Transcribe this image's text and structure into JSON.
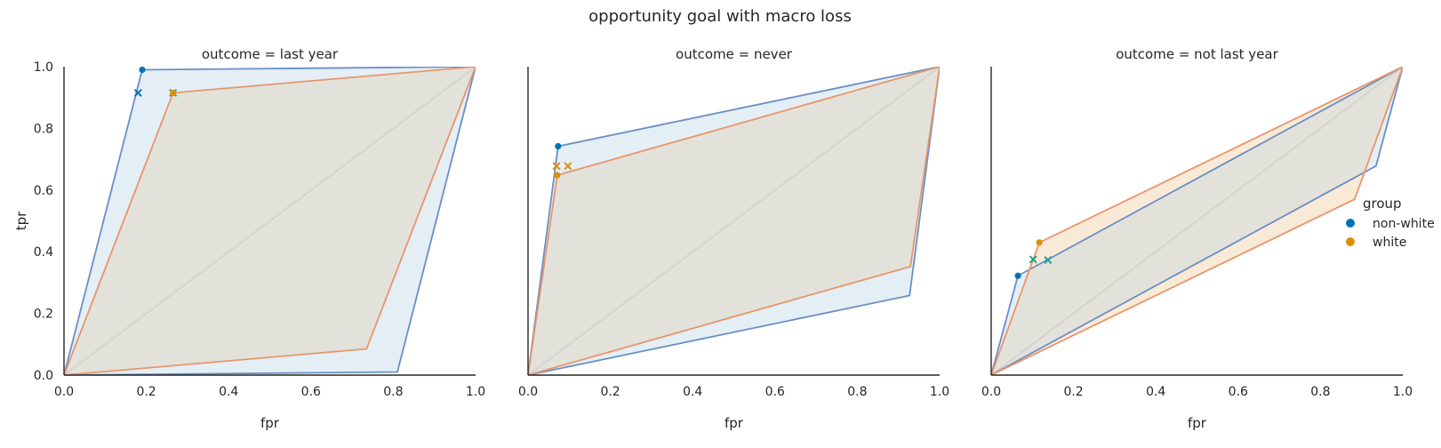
{
  "figure": {
    "title": "opportunity goal with macro loss"
  },
  "legend": {
    "title": "group",
    "entries": [
      {
        "label": "non-white",
        "color": "#0173b2"
      },
      {
        "label": "white",
        "color": "#de8f05"
      }
    ]
  },
  "colors": {
    "non_white_line": "#6a8fc4",
    "non_white_fill": "#dbe8f2",
    "white_line": "#e8956b",
    "white_fill": "#f7e3c9",
    "overlap_fill": "#e2e2da",
    "diagonal": "#d0d0d0",
    "marker_non_white": "#0173b2",
    "marker_white": "#de8f05",
    "marker_shared": "#2a9d8f"
  },
  "chart_data": [
    {
      "type": "line",
      "title": "outcome = last year",
      "xlabel": "fpr",
      "ylabel": "tpr",
      "xlim": [
        0,
        1
      ],
      "ylim": [
        0,
        1
      ],
      "xticks": [
        "0.0",
        "0.2",
        "0.4",
        "0.6",
        "0.8",
        "1.0"
      ],
      "yticks": [
        "0.0",
        "0.2",
        "0.4",
        "0.6",
        "0.8",
        "1.0"
      ],
      "grid": false,
      "series": [
        {
          "name": "non-white",
          "hull": [
            [
              0,
              0
            ],
            [
              0.19,
              0.99
            ],
            [
              1,
              1
            ],
            [
              0.81,
              0.01
            ]
          ],
          "point": [
            0.19,
            0.99
          ]
        },
        {
          "name": "white",
          "hull": [
            [
              0,
              0
            ],
            [
              0.265,
              0.915
            ],
            [
              1,
              1
            ],
            [
              0.735,
              0.085
            ]
          ],
          "point": [
            0.265,
            0.915
          ]
        }
      ],
      "x_markers": [
        {
          "x": 0.18,
          "y": 0.915,
          "group": "non-white"
        },
        {
          "x": 0.265,
          "y": 0.915,
          "group": "both"
        }
      ]
    },
    {
      "type": "line",
      "title": "outcome = never",
      "xlabel": "fpr",
      "ylabel": "",
      "xlim": [
        0,
        1
      ],
      "ylim": [
        0,
        1
      ],
      "xticks": [
        "0.0",
        "0.2",
        "0.4",
        "0.6",
        "0.8",
        "1.0"
      ],
      "yticks": [],
      "grid": false,
      "series": [
        {
          "name": "non-white",
          "hull": [
            [
              0,
              0
            ],
            [
              0.073,
              0.742
            ],
            [
              1,
              1
            ],
            [
              0.927,
              0.258
            ]
          ],
          "point": [
            0.073,
            0.742
          ]
        },
        {
          "name": "white",
          "hull": [
            [
              0,
              0
            ],
            [
              0.071,
              0.648
            ],
            [
              1,
              1
            ],
            [
              0.929,
              0.352
            ]
          ],
          "point": [
            0.071,
            0.648
          ]
        }
      ],
      "x_markers": [
        {
          "x": 0.069,
          "y": 0.678,
          "group": "white"
        },
        {
          "x": 0.097,
          "y": 0.678,
          "group": "white"
        }
      ]
    },
    {
      "type": "line",
      "title": "outcome = not last year",
      "xlabel": "fpr",
      "ylabel": "",
      "xlim": [
        0,
        1
      ],
      "ylim": [
        0,
        1
      ],
      "xticks": [
        "0.0",
        "0.2",
        "0.4",
        "0.6",
        "0.8",
        "1.0"
      ],
      "yticks": [],
      "grid": false,
      "series": [
        {
          "name": "non-white",
          "hull": [
            [
              0,
              0
            ],
            [
              0.065,
              0.322
            ],
            [
              1,
              1
            ],
            [
              0.935,
              0.678
            ]
          ],
          "point": [
            0.065,
            0.322
          ]
        },
        {
          "name": "white",
          "hull": [
            [
              0,
              0
            ],
            [
              0.117,
              0.43
            ],
            [
              1,
              1
            ],
            [
              0.883,
              0.57
            ]
          ],
          "point": [
            0.117,
            0.43
          ]
        }
      ],
      "x_markers": [
        {
          "x": 0.102,
          "y": 0.375,
          "group": "both"
        },
        {
          "x": 0.138,
          "y": 0.373,
          "group": "both"
        }
      ]
    }
  ]
}
